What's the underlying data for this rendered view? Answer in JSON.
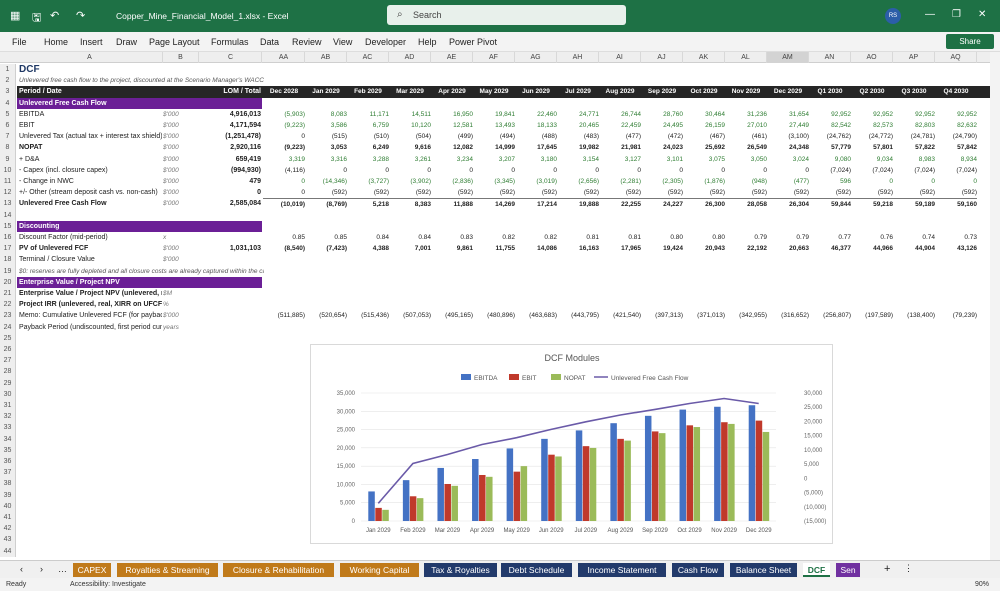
{
  "app": {
    "title": "Copper_Mine_Financial_Model_1.xlsx  -  Excel",
    "search_placeholder": "Search",
    "avatar": "RS",
    "share": "Share"
  },
  "menu": [
    "File",
    "Home",
    "Insert",
    "Draw",
    "Page Layout",
    "Formulas",
    "Data",
    "Review",
    "View",
    "Developer",
    "Help",
    "Power Pivot"
  ],
  "columns": [
    "A",
    "B",
    "C",
    "AA",
    "AB",
    "AC",
    "AD",
    "AE",
    "AF",
    "AG",
    "AH",
    "AI",
    "AJ",
    "AK",
    "AL",
    "AM",
    "AN",
    "AO",
    "AP",
    "AQ"
  ],
  "period_labels": [
    "Dec 2028",
    "Jan 2029",
    "Feb 2029",
    "Mar 2029",
    "Apr 2029",
    "May 2029",
    "Jun 2029",
    "Jul 2029",
    "Aug 2029",
    "Sep 2029",
    "Oct 2029",
    "Nov 2029",
    "Dec 2029",
    "Q1 2030",
    "Q2 2030",
    "Q3 2030",
    "Q4 2030"
  ],
  "rows": [
    {
      "n": "1",
      "a": "DCF",
      "style": "title"
    },
    {
      "n": "2",
      "a": "Unlevered free cash flow to the project, discounted at the Scenario Manager's WACC",
      "style": "note"
    },
    {
      "n": "3",
      "a": "Period / Date",
      "c": "LOM / Total",
      "style": "hdr"
    },
    {
      "n": "4",
      "a": "Unlevered Free Cash Flow",
      "style": "sec"
    },
    {
      "n": "5",
      "a": "EBITDA",
      "b": "$'000",
      "c": "4,916,013",
      "v": [
        "(5,903)",
        "8,083",
        "11,171",
        "14,511",
        "16,950",
        "19,841",
        "22,460",
        "24,771",
        "26,744",
        "28,760",
        "30,464",
        "31,236",
        "31,654",
        "92,952",
        "92,952",
        "92,952",
        "92,952"
      ],
      "cls": "g"
    },
    {
      "n": "6",
      "a": "EBIT",
      "b": "$'000",
      "c": "4,171,594",
      "v": [
        "(9,223)",
        "3,586",
        "6,759",
        "10,120",
        "12,581",
        "13,493",
        "18,133",
        "20,465",
        "22,459",
        "24,495",
        "26,159",
        "27,010",
        "27,449",
        "82,542",
        "82,573",
        "82,803",
        "82,632"
      ],
      "cls": "g"
    },
    {
      "n": "7",
      "a": "Unlevered Tax (actual tax + interest tax shield)",
      "b": "$'000",
      "c": "(1,251,478)",
      "v": [
        "0",
        "(515)",
        "(510)",
        "(504)",
        "(499)",
        "(494)",
        "(488)",
        "(483)",
        "(477)",
        "(472)",
        "(467)",
        "(461)",
        "(3,100)",
        "(24,762)",
        "(24,772)",
        "(24,781)",
        "(24,790)"
      ]
    },
    {
      "n": "8",
      "a": "NOPAT",
      "b": "$'000",
      "c": "2,920,116",
      "v": [
        "(9,223)",
        "3,053",
        "6,249",
        "9,616",
        "12,082",
        "14,999",
        "17,645",
        "19,982",
        "21,981",
        "24,023",
        "25,692",
        "26,549",
        "24,348",
        "57,779",
        "57,801",
        "57,822",
        "57,842"
      ],
      "cls": "bold"
    },
    {
      "n": "9",
      "a": "  + D&A",
      "b": "$'000",
      "c": "659,419",
      "v": [
        "3,319",
        "3,316",
        "3,288",
        "3,261",
        "3,234",
        "3,207",
        "3,180",
        "3,154",
        "3,127",
        "3,101",
        "3,075",
        "3,050",
        "3,024",
        "9,080",
        "9,034",
        "8,983",
        "8,934"
      ],
      "cls": "g"
    },
    {
      "n": "10",
      "a": "  - Capex (incl. closure capex)",
      "b": "$'000",
      "c": "(994,930)",
      "v": [
        "(4,116)",
        "0",
        "0",
        "0",
        "0",
        "0",
        "0",
        "0",
        "0",
        "0",
        "0",
        "0",
        "0",
        "(7,024)",
        "(7,024)",
        "(7,024)",
        "(7,024)"
      ]
    },
    {
      "n": "11",
      "a": "  - Change in NWC",
      "b": "$'000",
      "c": "479",
      "v": [
        "0",
        "(14,346)",
        "(3,727)",
        "(3,902)",
        "(2,836)",
        "(3,345)",
        "(3,019)",
        "(2,656)",
        "(2,281)",
        "(2,305)",
        "(1,876)",
        "(948)",
        "(477)",
        "596",
        "0",
        "0",
        "0"
      ],
      "cls": "g"
    },
    {
      "n": "12",
      "a": "  +/- Other (stream deposit cash vs. non-cash)",
      "b": "$'000",
      "c": "0",
      "v": [
        "0",
        "(592)",
        "(592)",
        "(592)",
        "(592)",
        "(592)",
        "(592)",
        "(592)",
        "(592)",
        "(592)",
        "(592)",
        "(592)",
        "(592)",
        "(592)",
        "(592)",
        "(592)",
        "(592)"
      ]
    },
    {
      "n": "13",
      "a": "Unlevered Free Cash Flow",
      "b": "$'000",
      "c": "2,585,084",
      "v": [
        "(10,019)",
        "(8,769)",
        "5,218",
        "8,383",
        "11,888",
        "14,269",
        "17,214",
        "19,888",
        "22,255",
        "24,227",
        "26,300",
        "28,058",
        "26,304",
        "59,844",
        "59,218",
        "59,189",
        "59,160"
      ],
      "cls": "bold bt"
    },
    {
      "n": "14",
      "a": ""
    },
    {
      "n": "15",
      "a": "Discounting",
      "style": "sec"
    },
    {
      "n": "16",
      "a": "Discount Factor (mid-period)",
      "b": "x",
      "v": [
        "0.85",
        "0.85",
        "0.84",
        "0.84",
        "0.83",
        "0.82",
        "0.82",
        "0.81",
        "0.81",
        "0.80",
        "0.80",
        "0.79",
        "0.79",
        "0.77",
        "0.76",
        "0.74",
        "0.73"
      ]
    },
    {
      "n": "17",
      "a": "PV of Unlevered FCF",
      "b": "$'000",
      "c": "1,031,103",
      "v": [
        "(8,540)",
        "(7,423)",
        "4,388",
        "7,001",
        "9,861",
        "11,755",
        "14,086",
        "16,163",
        "17,965",
        "19,424",
        "20,943",
        "22,192",
        "20,663",
        "46,377",
        "44,966",
        "44,904",
        "43,126"
      ],
      "cls": "bold"
    },
    {
      "n": "18",
      "a": "Terminal / Closure Value",
      "b": "$'000"
    },
    {
      "n": "19",
      "a": "      $0: reserves are fully depleted and all closure costs are already captured within the cash flows",
      "style": "note"
    },
    {
      "n": "20",
      "a": "Enterprise Value / Project NPV",
      "style": "sec"
    },
    {
      "n": "21",
      "a": "Enterprise Value / Project NPV (unlevered, real)",
      "b": "$M",
      "cls": "bold"
    },
    {
      "n": "22",
      "a": "Project IRR (unlevered, real, XIRR on UFCF)",
      "b": "%",
      "cls": "bold"
    },
    {
      "n": "23",
      "a": "   Memo: Cumulative Unlevered FCF (for payback)",
      "b": "$'000",
      "v": [
        "(511,885)",
        "(520,654)",
        "(515,436)",
        "(507,053)",
        "(495,165)",
        "(480,896)",
        "(463,683)",
        "(443,795)",
        "(421,540)",
        "(397,313)",
        "(371,013)",
        "(342,955)",
        "(316,652)",
        "(256,807)",
        "(197,589)",
        "(138,400)",
        "(79,239)"
      ]
    },
    {
      "n": "24",
      "a": "   Payback Period (undiscounted, first period cum. > 0)",
      "b": "years"
    },
    {
      "n": "25",
      "a": ""
    },
    {
      "n": "26",
      "a": ""
    },
    {
      "n": "27",
      "a": ""
    },
    {
      "n": "28",
      "a": ""
    },
    {
      "n": "29",
      "a": ""
    },
    {
      "n": "30",
      "a": ""
    },
    {
      "n": "31",
      "a": ""
    },
    {
      "n": "32",
      "a": ""
    },
    {
      "n": "33",
      "a": ""
    },
    {
      "n": "34",
      "a": ""
    },
    {
      "n": "35",
      "a": ""
    },
    {
      "n": "36",
      "a": ""
    },
    {
      "n": "37",
      "a": ""
    },
    {
      "n": "38",
      "a": ""
    },
    {
      "n": "39",
      "a": ""
    },
    {
      "n": "40",
      "a": ""
    },
    {
      "n": "41",
      "a": ""
    },
    {
      "n": "42",
      "a": ""
    },
    {
      "n": "43",
      "a": ""
    },
    {
      "n": "44",
      "a": ""
    }
  ],
  "chart_data": {
    "type": "bar",
    "title": "DCF Modules",
    "categories": [
      "Jan 2029",
      "Feb 2029",
      "Mar 2029",
      "Apr 2029",
      "May 2029",
      "Jun 2029",
      "Jul 2029",
      "Aug 2029",
      "Sep 2029",
      "Oct 2029",
      "Nov 2029",
      "Dec 2029"
    ],
    "series": [
      {
        "name": "EBITDA",
        "color": "#4472c4",
        "values": [
          8083,
          11171,
          14511,
          16950,
          19841,
          22460,
          24771,
          26744,
          28760,
          30464,
          31236,
          31654
        ]
      },
      {
        "name": "EBIT",
        "color": "#c0392b",
        "values": [
          3586,
          6759,
          10120,
          12581,
          13493,
          18133,
          20465,
          22459,
          24495,
          26159,
          27010,
          27449
        ]
      },
      {
        "name": "NOPAT",
        "color": "#9bbb59",
        "values": [
          3053,
          6249,
          9616,
          12082,
          14999,
          17645,
          19982,
          21981,
          24023,
          25692,
          26549,
          24348
        ]
      },
      {
        "name": "Unlevered Free Cash Flow",
        "type": "line",
        "axis": "right",
        "color": "#6a5aa8",
        "values": [
          -8769,
          5218,
          8383,
          11888,
          14269,
          17214,
          19888,
          22255,
          24227,
          26300,
          28058,
          26304
        ]
      }
    ],
    "ylim": [
      0,
      35000
    ],
    "yticks": [
      "0",
      "5,000",
      "10,000",
      "15,000",
      "20,000",
      "25,000",
      "30,000",
      "35,000"
    ],
    "y2lim": [
      -15000,
      30000
    ],
    "y2ticks": [
      "(15,000)",
      "(10,000)",
      "(5,000)",
      "0",
      "5,000",
      "10,000",
      "15,000",
      "20,000",
      "25,000",
      "30,000"
    ],
    "legend": "top"
  },
  "tabs": [
    {
      "label": "CAPEX",
      "color": "#c07a1a"
    },
    {
      "label": "Royalties & Streaming",
      "color": "#c07a1a"
    },
    {
      "label": "Closure & Rehabilitation",
      "color": "#c07a1a"
    },
    {
      "label": "Working Capital",
      "color": "#c07a1a"
    },
    {
      "label": "Tax & Royalties",
      "color": "#223a6b"
    },
    {
      "label": "Debt Schedule",
      "color": "#223a6b"
    },
    {
      "label": "Income Statement",
      "color": "#223a6b"
    },
    {
      "label": "Cash Flow",
      "color": "#223a6b"
    },
    {
      "label": "Balance Sheet",
      "color": "#223a6b"
    },
    {
      "label": "DCF",
      "color": "#ffffff"
    },
    {
      "label": "Sen",
      "color": "#7030a0"
    }
  ],
  "status": {
    "ready": "Ready",
    "accessibility": "Accessibility: Investigate",
    "zoom": "90%"
  }
}
